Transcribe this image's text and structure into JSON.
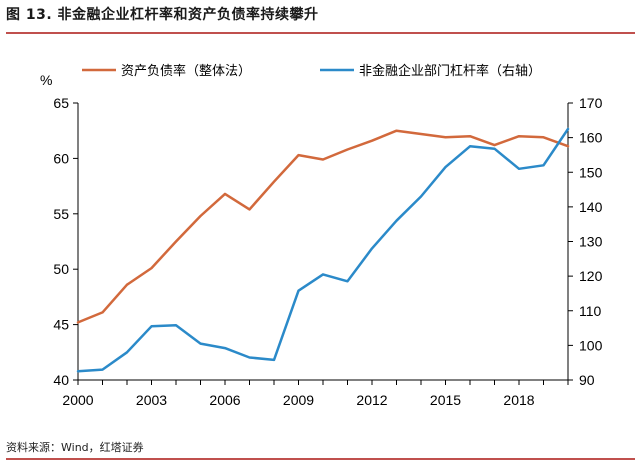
{
  "header": {
    "figure_title": "图 13. 非金融企业杠杆率和资产负债率持续攀升"
  },
  "footer": {
    "source": "资料来源：Wind，红塔证券"
  },
  "chart_data": {
    "type": "line",
    "title": "",
    "xlabel": "",
    "ylabel": "%",
    "x": [
      2000,
      2001,
      2002,
      2003,
      2004,
      2005,
      2006,
      2007,
      2008,
      2009,
      2010,
      2011,
      2012,
      2013,
      2014,
      2015,
      2016,
      2017,
      2018,
      2019,
      2020
    ],
    "x_ticks": [
      "2000",
      "2003",
      "2006",
      "2009",
      "2012",
      "2015",
      "2018"
    ],
    "y_left": {
      "label": "%",
      "range": [
        40,
        65
      ],
      "ticks": [
        "40",
        "45",
        "50",
        "55",
        "60",
        "65"
      ]
    },
    "y_right": {
      "range": [
        90,
        170
      ],
      "ticks": [
        "90",
        "100",
        "110",
        "120",
        "130",
        "140",
        "150",
        "160",
        "170"
      ]
    },
    "legend_position": "top",
    "grid": false,
    "series": [
      {
        "name": "资产负债率（整体法）",
        "axis": "left",
        "color": "#d2693c",
        "values": [
          45.2,
          46.1,
          48.6,
          50.1,
          52.5,
          54.8,
          56.8,
          55.4,
          57.9,
          60.3,
          59.9,
          60.8,
          61.6,
          62.5,
          62.2,
          61.9,
          62.0,
          61.2,
          62.0,
          61.9,
          61.1
        ]
      },
      {
        "name": "非金融企业部门杠杆率（右轴）",
        "axis": "right",
        "color": "#2b8ac9",
        "values": [
          92.5,
          93.0,
          98.0,
          105.5,
          105.8,
          100.5,
          99.2,
          96.5,
          95.8,
          115.8,
          120.5,
          118.5,
          128.0,
          136.0,
          143.0,
          151.5,
          157.5,
          156.8,
          151.0,
          152.0,
          162.5
        ]
      }
    ]
  }
}
